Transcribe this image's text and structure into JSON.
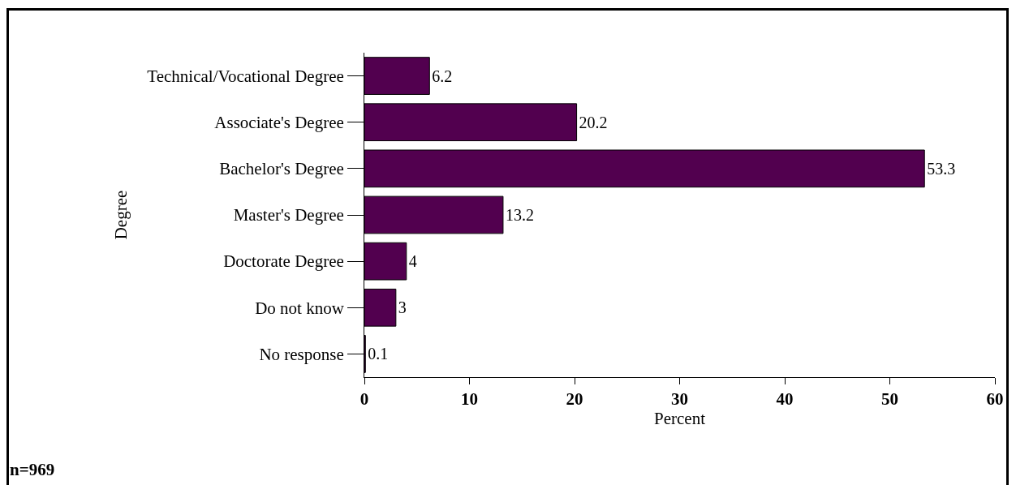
{
  "chart_data": {
    "type": "bar",
    "orientation": "horizontal",
    "categories": [
      "Technical/Vocational Degree",
      "Associate's Degree",
      "Bachelor's Degree",
      "Master's Degree",
      "Doctorate Degree",
      "Do not know",
      "No response"
    ],
    "values": [
      6.2,
      20.2,
      53.3,
      13.2,
      4,
      3,
      0.1
    ],
    "color": "#52004f",
    "xlim": [
      0,
      60
    ],
    "xticks": [
      0,
      10,
      20,
      30,
      40,
      50,
      60
    ],
    "xlabel": "Percent",
    "ylabel": "Degree",
    "data_labels": true,
    "grid": false,
    "legend": false,
    "annotations": [
      "n=969"
    ]
  }
}
